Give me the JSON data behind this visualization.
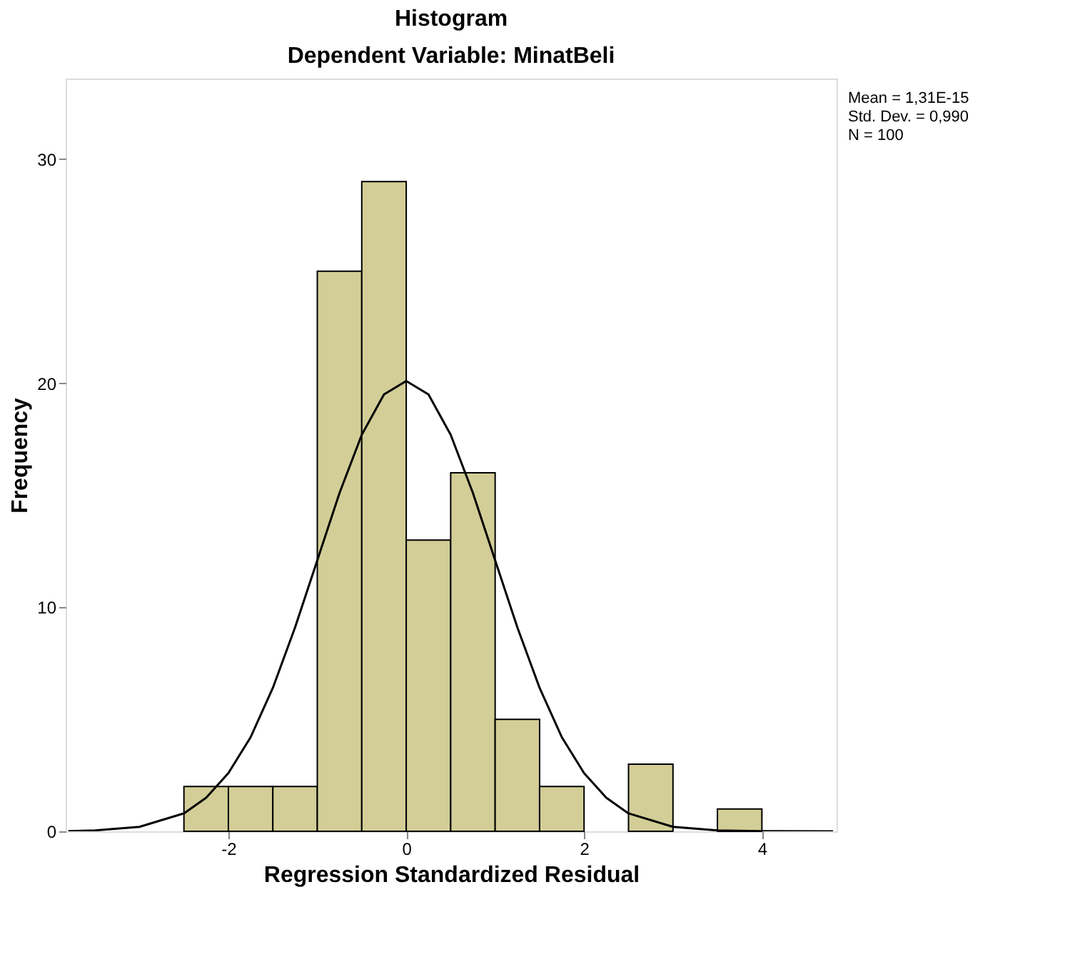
{
  "chart_data": {
    "type": "histogram",
    "title": "Histogram",
    "subtitle": "Dependent Variable: MinatBeli",
    "xlabel": "Regression Standardized Residual",
    "ylabel": "Frequency",
    "bins": [
      -2.5,
      -2.0,
      -1.5,
      -1.0,
      -0.5,
      0.0,
      0.5,
      1.0,
      1.5,
      2.0,
      2.5,
      3.0,
      3.5,
      4.0
    ],
    "values": [
      2,
      2,
      2,
      25,
      29,
      13,
      16,
      5,
      2,
      0,
      3,
      0,
      1
    ],
    "color": "#d3ce97",
    "series": [
      {
        "type": "line",
        "color": "#000000",
        "x": [
          -3.8,
          -3.5,
          -3.0,
          -2.5,
          -2.25,
          -2.0,
          -1.75,
          -1.5,
          -1.25,
          -1.0,
          -0.75,
          -0.5,
          -0.25,
          0.0,
          0.25,
          0.5,
          0.75,
          1.0,
          1.25,
          1.5,
          1.75,
          2.0,
          2.25,
          2.5,
          3.0,
          3.5,
          4.0,
          4.8
        ],
        "values": [
          0.01,
          0.04,
          0.2,
          0.8,
          1.5,
          2.6,
          4.2,
          6.4,
          9.1,
          12.1,
          15.1,
          17.7,
          19.5,
          20.1,
          19.5,
          17.7,
          15.1,
          12.1,
          9.1,
          6.4,
          4.2,
          2.6,
          1.5,
          0.8,
          0.2,
          0.04,
          0.01,
          0.0
        ]
      }
    ],
    "xlim": [
      -3.83,
      4.84
    ],
    "ylim": [
      0,
      33.6
    ],
    "xticks": [
      -2,
      0,
      2,
      4
    ],
    "yticks": [
      0,
      10,
      20,
      30
    ],
    "grid": false,
    "annotations": [
      "Mean = 1,31E-15",
      "Std. Dev. = 0,990",
      "N = 100"
    ]
  }
}
